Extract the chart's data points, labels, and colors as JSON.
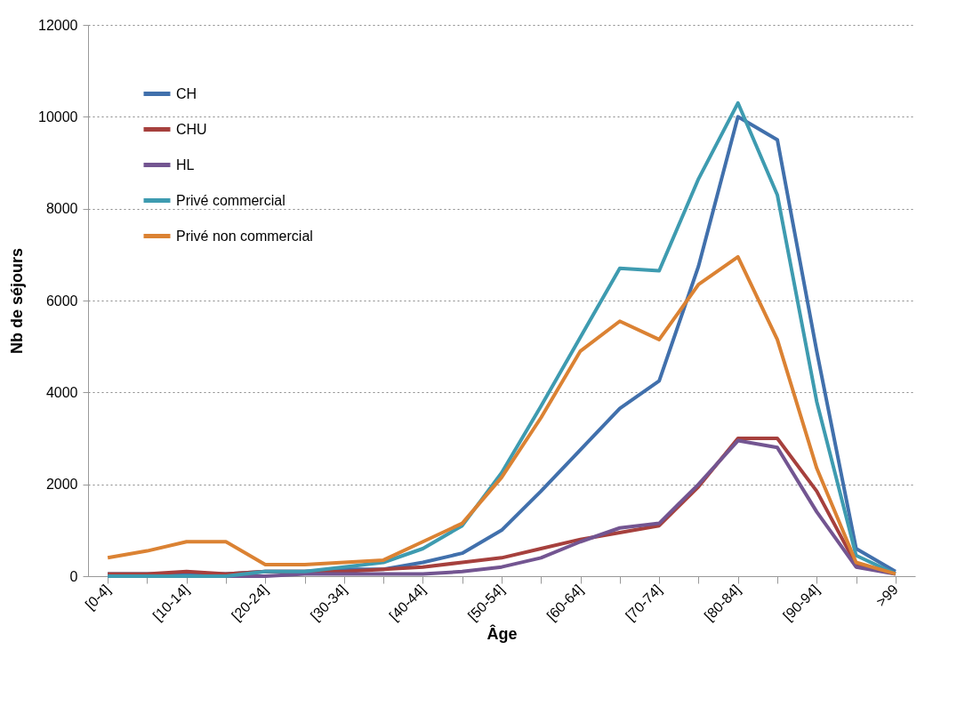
{
  "chart_data": {
    "type": "line",
    "xlabel": "Âge",
    "ylabel": "Nb de séjours",
    "categories": [
      "[0-4]",
      null,
      "[10-14]",
      null,
      "[20-24]",
      null,
      "[30-34]",
      null,
      "[40-44]",
      null,
      "[50-54]",
      null,
      "[60-64]",
      null,
      "[70-74]",
      null,
      "[80-84]",
      null,
      "[90-94]",
      null,
      ">99"
    ],
    "series": [
      {
        "name": "CH",
        "color": "#4170ac",
        "values": [
          50,
          50,
          50,
          50,
          100,
          100,
          150,
          150,
          300,
          500,
          1000,
          1850,
          2750,
          3650,
          4250,
          6750,
          10000,
          9500,
          4900,
          600,
          100
        ]
      },
      {
        "name": "CHU",
        "color": "#a6403d",
        "values": [
          50,
          50,
          100,
          50,
          100,
          100,
          100,
          150,
          200,
          300,
          400,
          600,
          800,
          950,
          1100,
          1950,
          3000,
          3000,
          1850,
          250,
          50
        ]
      },
      {
        "name": "HL",
        "color": "#735591",
        "values": [
          0,
          0,
          0,
          0,
          0,
          50,
          50,
          50,
          50,
          100,
          200,
          400,
          750,
          1050,
          1150,
          2000,
          2950,
          2800,
          1400,
          200,
          50
        ]
      },
      {
        "name": "Privé commercial",
        "color": "#3e9bb0",
        "values": [
          0,
          0,
          0,
          0,
          100,
          100,
          200,
          300,
          600,
          1100,
          2250,
          3700,
          5200,
          6700,
          6650,
          8650,
          10300,
          8300,
          3800,
          450,
          50
        ]
      },
      {
        "name": "Privé non commercial",
        "color": "#db8233",
        "values": [
          400,
          550,
          750,
          750,
          250,
          250,
          300,
          350,
          750,
          1150,
          2150,
          3450,
          4900,
          5550,
          5150,
          6350,
          6950,
          5150,
          2350,
          300,
          50
        ]
      }
    ],
    "ylim": [
      0,
      12000
    ],
    "yticks": [
      0,
      2000,
      4000,
      6000,
      8000,
      10000,
      12000
    ],
    "grid": "y",
    "legend": "top left"
  }
}
